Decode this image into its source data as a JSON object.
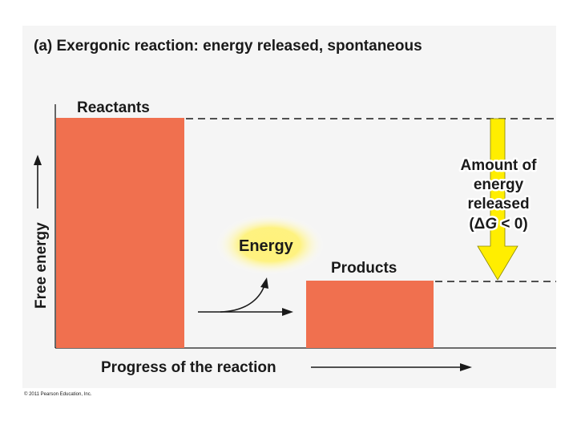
{
  "title": "(a) Exergonic reaction: energy released, spontaneous",
  "y_axis_label": "Free energy",
  "x_axis_label": "Progress of the reaction",
  "reactants_label": "Reactants",
  "products_label": "Products",
  "energy_label": "Energy",
  "released_label": {
    "line1": "Amount of",
    "line2": "energy",
    "line3": "released",
    "line4_open": "(",
    "delta": "Δ",
    "g": "G",
    "line4_rest": " < 0)"
  },
  "copyright": "© 2011 Pearson Education, Inc.",
  "colors": {
    "bar": "#f0704f",
    "arrow_yellow": "#ffee00",
    "glow": "#fff27a",
    "panel": "#f5f5f5",
    "text": "#1a1a1a"
  },
  "icons": [
    "energy-arrow-icon",
    "released-arrow-icon"
  ]
}
